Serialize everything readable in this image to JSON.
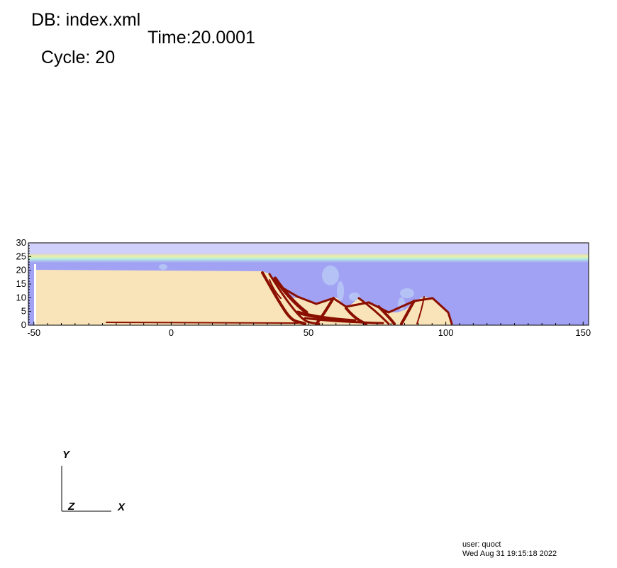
{
  "header": {
    "db_label": "DB: index.xml",
    "cycle_label": "Cycle: 20",
    "time_label": "Time:20.0001"
  },
  "plot": {
    "x_ticks": [
      "-50",
      "0",
      "50",
      "100",
      "150"
    ],
    "y_ticks": [
      "0",
      "5",
      "10",
      "15",
      "20",
      "25",
      "30"
    ],
    "xlim": [
      -52,
      152
    ],
    "ylim": [
      0,
      30
    ],
    "colors": {
      "background_fluid": "#a2a2f5",
      "solid": "#f8e4b8",
      "dense_band": "#8b0f00",
      "interface_cyan": "#b8f0e0",
      "interface_yellow": "#f0f0a0"
    }
  },
  "triad": {
    "y_label": "Y",
    "x_label": "X",
    "z_label": "Z"
  },
  "footer": {
    "user": "user: quoct",
    "timestamp": "Wed Aug 31 19:15:18 2022"
  }
}
